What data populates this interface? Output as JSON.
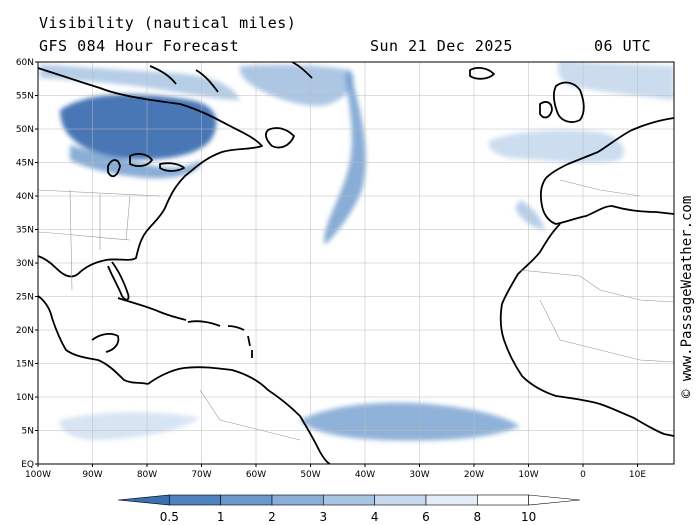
{
  "header": {
    "title": "Visibility (nautical miles)",
    "model_line": "GFS 084 Hour Forecast",
    "date": "Sun 21 Dec 2025",
    "time": "06 UTC"
  },
  "map": {
    "lat_labels": [
      "60N",
      "55N",
      "50N",
      "45N",
      "40N",
      "35N",
      "30N",
      "25N",
      "20N",
      "15N",
      "10N",
      "5N",
      "EQ"
    ],
    "lon_labels": [
      "100W",
      "90W",
      "80W",
      "70W",
      "60W",
      "50W",
      "40W",
      "30W",
      "20W",
      "10W",
      "0",
      "10E"
    ]
  },
  "legend": {
    "labels": [
      "0.5",
      "1",
      "2",
      "3",
      "4",
      "6",
      "8",
      "10"
    ],
    "colors": [
      "#3a6fb0",
      "#4f82c0",
      "#6b98cc",
      "#8aaed8",
      "#a8c4e3",
      "#c6d9ee",
      "#e2ecf7",
      "#ffffff"
    ]
  },
  "credit": "© www.PassageWeather.com"
}
